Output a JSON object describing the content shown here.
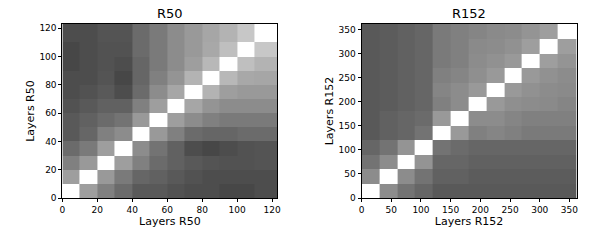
{
  "chart_data": [
    {
      "type": "heatmap",
      "title": "R50",
      "x_label": "Layers R50",
      "y_label": "Layers R50",
      "color": "gray",
      "x": [
        0,
        10,
        20,
        30,
        40,
        50,
        60,
        70,
        80,
        90,
        100,
        110,
        123
      ],
      "y": [
        0,
        10,
        20,
        30,
        40,
        50,
        60,
        70,
        80,
        90,
        100,
        110,
        123
      ],
      "xlim": [
        0,
        123
      ],
      "ylim": [
        0,
        123
      ],
      "xticks": [
        0,
        20,
        40,
        60,
        80,
        100,
        120
      ],
      "yticks": [
        0,
        20,
        40,
        60,
        80,
        100,
        120
      ],
      "zlim": [
        0,
        1
      ],
      "z": [
        [
          1.0,
          0.62,
          0.5,
          0.42,
          0.35,
          0.35,
          0.32,
          0.3,
          0.3,
          0.28,
          0.28,
          0.3
        ],
        [
          0.62,
          1.0,
          0.6,
          0.48,
          0.4,
          0.38,
          0.35,
          0.32,
          0.3,
          0.3,
          0.3,
          0.3
        ],
        [
          0.5,
          0.6,
          1.0,
          0.62,
          0.5,
          0.42,
          0.38,
          0.35,
          0.33,
          0.32,
          0.32,
          0.33
        ],
        [
          0.42,
          0.48,
          0.62,
          1.0,
          0.55,
          0.45,
          0.38,
          0.3,
          0.28,
          0.3,
          0.32,
          0.33
        ],
        [
          0.35,
          0.4,
          0.5,
          0.55,
          1.0,
          0.6,
          0.5,
          0.42,
          0.4,
          0.4,
          0.42,
          0.42
        ],
        [
          0.35,
          0.38,
          0.42,
          0.45,
          0.6,
          1.0,
          0.62,
          0.55,
          0.5,
          0.48,
          0.48,
          0.48
        ],
        [
          0.32,
          0.35,
          0.38,
          0.38,
          0.5,
          0.62,
          1.0,
          0.65,
          0.58,
          0.55,
          0.55,
          0.55
        ],
        [
          0.3,
          0.32,
          0.35,
          0.3,
          0.42,
          0.55,
          0.65,
          1.0,
          0.7,
          0.62,
          0.6,
          0.6
        ],
        [
          0.3,
          0.3,
          0.33,
          0.28,
          0.4,
          0.5,
          0.58,
          0.7,
          1.0,
          0.72,
          0.66,
          0.65
        ],
        [
          0.28,
          0.3,
          0.32,
          0.3,
          0.4,
          0.48,
          0.55,
          0.62,
          0.72,
          1.0,
          0.75,
          0.7
        ],
        [
          0.28,
          0.3,
          0.32,
          0.32,
          0.42,
          0.48,
          0.55,
          0.6,
          0.66,
          0.75,
          1.0,
          0.78
        ],
        [
          0.3,
          0.3,
          0.33,
          0.33,
          0.42,
          0.48,
          0.55,
          0.6,
          0.65,
          0.7,
          0.78,
          1.0
        ]
      ]
    },
    {
      "type": "heatmap",
      "title": "R152",
      "x_label": "Layers R152",
      "y_label": "Layers R152",
      "color": "gray",
      "x": [
        0,
        30,
        60,
        90,
        120,
        150,
        180,
        210,
        240,
        270,
        300,
        330,
        362
      ],
      "y": [
        0,
        30,
        60,
        90,
        120,
        150,
        180,
        210,
        240,
        270,
        300,
        330,
        362
      ],
      "xlim": [
        0,
        362
      ],
      "ylim": [
        0,
        362
      ],
      "xticks": [
        0,
        50,
        100,
        150,
        200,
        250,
        300,
        350
      ],
      "yticks": [
        0,
        50,
        100,
        150,
        200,
        250,
        300,
        350
      ],
      "zlim": [
        0,
        1
      ],
      "z": [
        [
          1.0,
          0.55,
          0.45,
          0.4,
          0.35,
          0.35,
          0.35,
          0.35,
          0.35,
          0.35,
          0.35,
          0.35
        ],
        [
          0.55,
          1.0,
          0.55,
          0.45,
          0.38,
          0.38,
          0.36,
          0.36,
          0.36,
          0.36,
          0.36,
          0.36
        ],
        [
          0.45,
          0.55,
          1.0,
          0.58,
          0.4,
          0.4,
          0.38,
          0.38,
          0.38,
          0.38,
          0.38,
          0.38
        ],
        [
          0.4,
          0.45,
          0.58,
          1.0,
          0.45,
          0.42,
          0.4,
          0.4,
          0.4,
          0.4,
          0.4,
          0.4
        ],
        [
          0.35,
          0.38,
          0.4,
          0.45,
          1.0,
          0.6,
          0.5,
          0.52,
          0.5,
          0.48,
          0.48,
          0.48
        ],
        [
          0.35,
          0.38,
          0.4,
          0.42,
          0.6,
          1.0,
          0.55,
          0.55,
          0.52,
          0.5,
          0.5,
          0.5
        ],
        [
          0.35,
          0.36,
          0.38,
          0.4,
          0.5,
          0.55,
          1.0,
          0.6,
          0.56,
          0.55,
          0.54,
          0.52
        ],
        [
          0.35,
          0.36,
          0.38,
          0.4,
          0.52,
          0.55,
          0.6,
          1.0,
          0.6,
          0.57,
          0.55,
          0.54
        ],
        [
          0.35,
          0.36,
          0.38,
          0.4,
          0.5,
          0.52,
          0.56,
          0.6,
          1.0,
          0.6,
          0.57,
          0.55
        ],
        [
          0.35,
          0.36,
          0.38,
          0.4,
          0.48,
          0.5,
          0.55,
          0.57,
          0.6,
          1.0,
          0.62,
          0.58
        ],
        [
          0.35,
          0.36,
          0.38,
          0.4,
          0.48,
          0.5,
          0.54,
          0.55,
          0.57,
          0.62,
          1.0,
          0.62
        ],
        [
          0.35,
          0.36,
          0.38,
          0.4,
          0.48,
          0.5,
          0.52,
          0.54,
          0.55,
          0.58,
          0.62,
          1.0
        ]
      ]
    }
  ]
}
